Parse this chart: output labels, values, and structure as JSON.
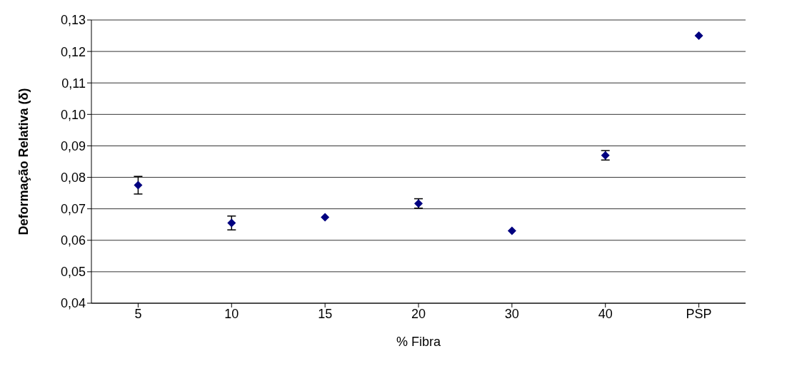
{
  "chart_data": {
    "type": "scatter",
    "xlabel": "% Fibra",
    "ylabel": "Deformação Relativa (δ)",
    "categories": [
      "5",
      "10",
      "15",
      "20",
      "30",
      "40",
      "PSP"
    ],
    "series": [
      {
        "color": "#000080",
        "values": [
          0.0775,
          0.0655,
          0.0673,
          0.0717,
          0.063,
          0.087,
          0.125
        ],
        "errors": [
          0.0028,
          0.0022,
          null,
          0.0015,
          null,
          0.0015,
          null
        ]
      }
    ],
    "ylim": [
      0.04,
      0.13
    ],
    "yticks": [
      {
        "value": 0.04,
        "label": "0,04"
      },
      {
        "value": 0.05,
        "label": "0,05"
      },
      {
        "value": 0.06,
        "label": "0,06"
      },
      {
        "value": 0.07,
        "label": "0,07"
      },
      {
        "value": 0.08,
        "label": "0,08"
      },
      {
        "value": 0.09,
        "label": "0,09"
      },
      {
        "value": 0.1,
        "label": "0,10"
      },
      {
        "value": 0.11,
        "label": "0,11"
      },
      {
        "value": 0.12,
        "label": "0,12"
      },
      {
        "value": 0.13,
        "label": "0,13"
      }
    ],
    "grid": "y",
    "marker": "diamond",
    "legend": false
  }
}
